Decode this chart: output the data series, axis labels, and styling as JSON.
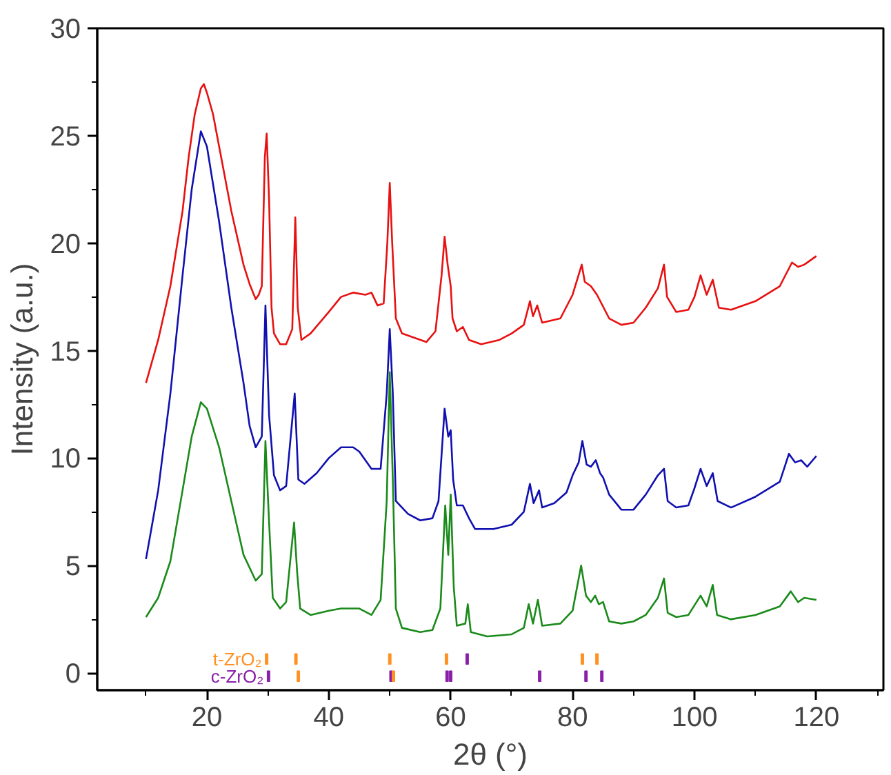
{
  "chart_data": {
    "type": "line",
    "xlabel": "2θ (°)",
    "ylabel": "Intensity (a.u.)",
    "xlim": [
      2,
      131
    ],
    "ylim": [
      -0.8,
      30
    ],
    "xticks": [
      {
        "value": 10,
        "label": null
      },
      20,
      {
        "value": 30,
        "label": null
      },
      40,
      {
        "value": 50,
        "label": null
      },
      60,
      {
        "value": 70,
        "label": null
      },
      80,
      {
        "value": 90,
        "label": null
      },
      100,
      {
        "value": 110,
        "label": null
      },
      120,
      {
        "value": 130,
        "label": null
      }
    ],
    "yticks": [
      0,
      {
        "value": 2.5,
        "label": null
      },
      5,
      {
        "value": 7.5,
        "label": null
      },
      10,
      {
        "value": 12.5,
        "label": null
      },
      15,
      {
        "value": 17.5,
        "label": null
      },
      20,
      {
        "value": 22.5,
        "label": null
      },
      25,
      {
        "value": 27.5,
        "label": null
      },
      30
    ],
    "grid": false,
    "legend": false,
    "series": [
      {
        "color": "#1a8a1a",
        "x": [
          10,
          12,
          14,
          16,
          17.5,
          19,
          20,
          22,
          24,
          26,
          27.5,
          28,
          29,
          29.6,
          30.2,
          30.8,
          32,
          33,
          34.3,
          34.8,
          35.3,
          37,
          40,
          42,
          44,
          45,
          47,
          48.5,
          49.5,
          50,
          50.5,
          51,
          52,
          55,
          57,
          58.3,
          59.1,
          59.6,
          60,
          60.5,
          61,
          62.4,
          62.8,
          63.3,
          66,
          70,
          72,
          72.8,
          73.5,
          74.3,
          75,
          78,
          80,
          81.4,
          82.2,
          83,
          83.7,
          84.3,
          85,
          86,
          88,
          90,
          92,
          94,
          95,
          95.6,
          97,
          99,
          101,
          102,
          103,
          103.7,
          106,
          110,
          114,
          115.8,
          117,
          118,
          120
        ],
        "values": [
          2.6,
          3.5,
          5.2,
          8.5,
          11,
          12.6,
          12.3,
          10.5,
          8,
          5.5,
          4.6,
          4.3,
          4.6,
          10.8,
          7,
          3.5,
          3,
          3.3,
          7,
          4.7,
          3,
          2.7,
          2.9,
          3.0,
          3.0,
          3.0,
          2.7,
          3.4,
          8,
          14,
          9,
          3,
          2.1,
          1.9,
          2,
          3,
          7.8,
          5.5,
          8.3,
          4,
          2.2,
          2.3,
          3.2,
          1.9,
          1.7,
          1.8,
          2.1,
          3.2,
          2.3,
          3.4,
          2.2,
          2.3,
          2.9,
          5.0,
          3.6,
          3.3,
          3.6,
          3.2,
          3.3,
          2.4,
          2.3,
          2.4,
          2.7,
          3.5,
          4.4,
          2.8,
          2.6,
          2.7,
          3.6,
          3.1,
          4.1,
          2.7,
          2.5,
          2.7,
          3.1,
          3.8,
          3.3,
          3.5,
          3.4
        ]
      },
      {
        "color": "#1010b0",
        "x": [
          10,
          12,
          14,
          16,
          17.5,
          19,
          20,
          22,
          24,
          26,
          27,
          28,
          29,
          29.6,
          30.2,
          31,
          32,
          33,
          34.4,
          35,
          36,
          38,
          40,
          42,
          44,
          45,
          47,
          48.5,
          49.5,
          50,
          50.5,
          51,
          53,
          55,
          57,
          58,
          59,
          59.6,
          60,
          60.4,
          61,
          62,
          63,
          64,
          67,
          70,
          72,
          73,
          73.6,
          74.5,
          75,
          77,
          79,
          80,
          81,
          81.6,
          82.3,
          83,
          83.8,
          84.5,
          85,
          86,
          88,
          90,
          92,
          94,
          95,
          95.6,
          97,
          99,
          100,
          101,
          102,
          103,
          103.8,
          106,
          110,
          114,
          115.5,
          116.5,
          117.5,
          118.5,
          120
        ],
        "values": [
          5.3,
          8.5,
          13,
          18.5,
          22.5,
          25.2,
          24.5,
          21,
          17,
          13.5,
          11.5,
          10.5,
          11,
          17.1,
          12,
          9.2,
          8.5,
          8.7,
          13,
          9,
          8.8,
          9.3,
          10,
          10.5,
          10.5,
          10.3,
          9.5,
          9.5,
          13,
          16,
          13,
          8,
          7.4,
          7.1,
          7.2,
          8,
          12.3,
          11,
          11.3,
          9,
          7.8,
          7.8,
          7.2,
          6.7,
          6.7,
          6.9,
          7.5,
          8.8,
          7.9,
          8.5,
          7.7,
          7.9,
          8.4,
          9.2,
          9.8,
          10.8,
          9.7,
          9.6,
          9.9,
          9.3,
          9.1,
          8.3,
          7.6,
          7.6,
          8.3,
          9.2,
          9.5,
          8,
          7.7,
          7.8,
          8.6,
          9.5,
          8.7,
          9.3,
          8.0,
          7.7,
          8.2,
          8.9,
          10.2,
          9.8,
          9.9,
          9.6,
          10.1
        ]
      },
      {
        "color": "#e81010",
        "x": [
          10,
          12,
          14,
          16,
          17,
          18,
          19,
          19.5,
          20,
          21,
          22,
          24,
          26,
          27,
          28,
          28.5,
          29,
          29.5,
          29.8,
          30.2,
          30.6,
          31,
          32,
          33,
          34,
          34.5,
          34.9,
          35.5,
          37,
          40,
          42,
          44,
          46,
          47,
          48,
          49,
          49.6,
          50,
          50.4,
          51,
          52,
          54,
          56,
          57.5,
          58.5,
          59,
          59.5,
          60,
          60.3,
          61,
          62,
          63,
          65,
          68,
          70,
          72,
          73,
          73.5,
          74.2,
          75,
          78,
          80,
          81.5,
          82,
          83,
          84,
          86,
          88,
          90,
          92,
          94,
          95,
          95.5,
          97,
          99,
          100,
          101,
          102,
          103,
          104,
          106,
          110,
          114,
          116,
          117,
          118,
          120
        ],
        "values": [
          13.5,
          15.5,
          18,
          21.5,
          24,
          26,
          27.2,
          27.4,
          27,
          26,
          24.5,
          21.5,
          19,
          18.1,
          17.4,
          17.6,
          18,
          24,
          25.1,
          22,
          17,
          15.8,
          15.3,
          15.3,
          16,
          21.2,
          17,
          15.5,
          15.8,
          16.8,
          17.5,
          17.7,
          17.6,
          17.7,
          17.1,
          17.2,
          20,
          22.8,
          20,
          16.5,
          15.8,
          15.6,
          15.4,
          15.9,
          18.5,
          20.3,
          19,
          18,
          16.5,
          15.9,
          16.1,
          15.5,
          15.3,
          15.5,
          15.8,
          16.2,
          17.3,
          16.6,
          17.1,
          16.3,
          16.5,
          17.6,
          19,
          18.2,
          18,
          17.6,
          16.5,
          16.2,
          16.3,
          17,
          17.9,
          19,
          17.5,
          16.8,
          16.9,
          17.5,
          18.5,
          17.6,
          18.3,
          17,
          16.9,
          17.3,
          18,
          19.1,
          18.9,
          19,
          19.4
        ]
      },
      {
        "type": "bar",
        "name": "t-ZrO₂",
        "color": "#ff9020",
        "x": [
          29.8,
          34.6,
          50.0,
          59.3,
          81.6,
          84.0
        ],
        "base": [
          0.4,
          0.4,
          0.4,
          0.4,
          0.4,
          0.4
        ],
        "values": [
          0.5,
          0.5,
          0.5,
          0.5,
          0.5,
          0.5
        ]
      },
      {
        "type": "bar",
        "color": "#8a1fa8",
        "x": [
          62.7
        ],
        "base": [
          0.4
        ],
        "values": [
          0.5
        ]
      },
      {
        "type": "bar",
        "name": "c-ZrO₂",
        "color": "#8a1fa8",
        "x": [
          30.1,
          50.2,
          59.4,
          60.0,
          74.6,
          82.2,
          84.8
        ],
        "base": [
          -0.4,
          -0.4,
          -0.4,
          -0.4,
          -0.4,
          -0.4,
          -0.4
        ],
        "values": [
          0.5,
          0.5,
          0.5,
          0.5,
          0.5,
          0.5,
          0.5
        ]
      },
      {
        "type": "bar",
        "color": "#ff9020",
        "x": [
          35.0,
          50.6
        ],
        "base": [
          -0.4,
          -0.4
        ],
        "values": [
          0.5,
          0.5
        ]
      }
    ]
  }
}
